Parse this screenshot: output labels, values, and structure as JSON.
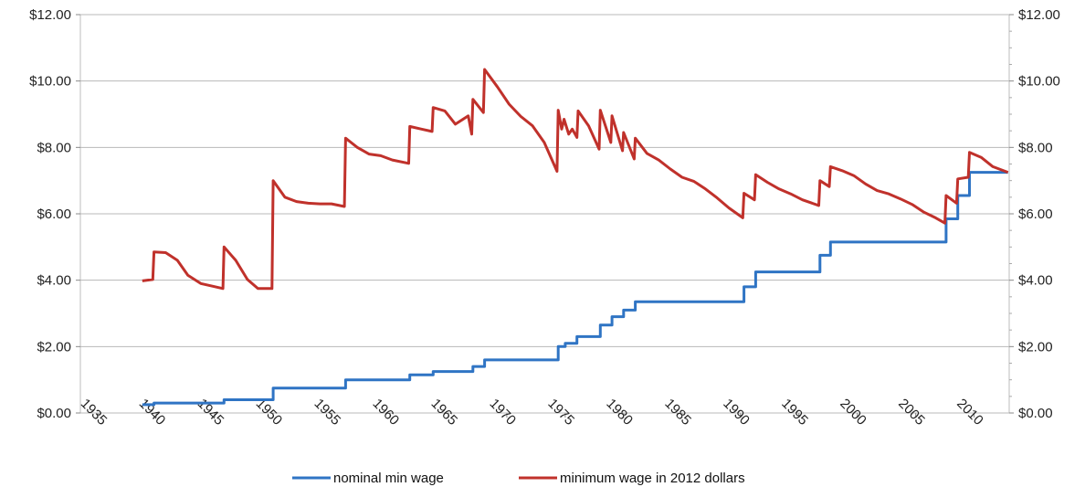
{
  "chart_data": {
    "type": "line",
    "title": "",
    "xlabel": "",
    "ylabel": "",
    "x_range": [
      1933.5,
      2013
    ],
    "ylim": [
      0,
      12
    ],
    "y_ticks": [
      "$0.00",
      "$2.00",
      "$4.00",
      "$6.00",
      "$8.00",
      "$10.00",
      "$12.00"
    ],
    "y_tick_values": [
      0,
      2,
      4,
      6,
      8,
      10,
      12
    ],
    "x_ticks": [
      "1935",
      "1940",
      "1945",
      "1950",
      "1955",
      "1960",
      "1965",
      "1970",
      "1975",
      "1980",
      "1985",
      "1990",
      "1995",
      "2000",
      "2005",
      "2010"
    ],
    "x_tick_values": [
      1935,
      1940,
      1945,
      1950,
      1955,
      1960,
      1965,
      1970,
      1975,
      1980,
      1985,
      1990,
      1995,
      2000,
      2005,
      2010
    ],
    "grid": "horizontal",
    "legend_position": "bottom",
    "series": [
      {
        "name": "nominal min wage",
        "color": "#2f74c4",
        "step": true,
        "points": [
          [
            1938.8,
            0.25
          ],
          [
            1939.8,
            0.3
          ],
          [
            1945.8,
            0.4
          ],
          [
            1950.0,
            0.75
          ],
          [
            1956.2,
            1.0
          ],
          [
            1961.7,
            1.15
          ],
          [
            1963.7,
            1.25
          ],
          [
            1967.1,
            1.4
          ],
          [
            1968.1,
            1.6
          ],
          [
            1974.4,
            2.0
          ],
          [
            1975.0,
            2.1
          ],
          [
            1976.0,
            2.3
          ],
          [
            1978.0,
            2.65
          ],
          [
            1979.0,
            2.9
          ],
          [
            1980.0,
            3.1
          ],
          [
            1981.0,
            3.35
          ],
          [
            1990.3,
            3.8
          ],
          [
            1991.3,
            4.25
          ],
          [
            1996.8,
            4.75
          ],
          [
            1997.7,
            5.15
          ],
          [
            2007.6,
            5.85
          ],
          [
            2008.6,
            6.55
          ],
          [
            2009.6,
            7.25
          ],
          [
            2012.9,
            7.25
          ]
        ]
      },
      {
        "name": "minimum wage in 2012 dollars",
        "color": "#c0312b",
        "step": false,
        "points": [
          [
            1938.8,
            3.98
          ],
          [
            1939.7,
            4.02
          ],
          [
            1939.8,
            4.85
          ],
          [
            1940.8,
            4.83
          ],
          [
            1941.8,
            4.6
          ],
          [
            1942.7,
            4.15
          ],
          [
            1943.8,
            3.9
          ],
          [
            1944.8,
            3.82
          ],
          [
            1945.7,
            3.75
          ],
          [
            1945.8,
            5.0
          ],
          [
            1946.8,
            4.6
          ],
          [
            1947.8,
            4.02
          ],
          [
            1948.7,
            3.75
          ],
          [
            1949.9,
            3.75
          ],
          [
            1950.0,
            7.0
          ],
          [
            1951.0,
            6.5
          ],
          [
            1952.0,
            6.37
          ],
          [
            1953.0,
            6.32
          ],
          [
            1954.0,
            6.3
          ],
          [
            1955.0,
            6.3
          ],
          [
            1956.1,
            6.22
          ],
          [
            1956.2,
            8.28
          ],
          [
            1957.2,
            8.0
          ],
          [
            1958.2,
            7.8
          ],
          [
            1959.2,
            7.75
          ],
          [
            1960.2,
            7.62
          ],
          [
            1961.6,
            7.52
          ],
          [
            1961.7,
            8.63
          ],
          [
            1962.7,
            8.55
          ],
          [
            1963.6,
            8.48
          ],
          [
            1963.7,
            9.2
          ],
          [
            1964.7,
            9.1
          ],
          [
            1965.6,
            8.7
          ],
          [
            1966.7,
            8.95
          ],
          [
            1967.0,
            8.4
          ],
          [
            1967.1,
            9.45
          ],
          [
            1968.0,
            9.05
          ],
          [
            1968.1,
            10.35
          ],
          [
            1969.2,
            9.82
          ],
          [
            1970.2,
            9.3
          ],
          [
            1971.2,
            8.93
          ],
          [
            1972.2,
            8.65
          ],
          [
            1973.2,
            8.15
          ],
          [
            1974.3,
            7.28
          ],
          [
            1974.4,
            9.12
          ],
          [
            1974.7,
            8.55
          ],
          [
            1974.9,
            8.85
          ],
          [
            1975.3,
            8.4
          ],
          [
            1975.6,
            8.55
          ],
          [
            1976.0,
            8.3
          ],
          [
            1976.1,
            9.1
          ],
          [
            1977.0,
            8.65
          ],
          [
            1977.9,
            7.95
          ],
          [
            1978.0,
            9.12
          ],
          [
            1978.9,
            8.15
          ],
          [
            1979.0,
            8.95
          ],
          [
            1979.9,
            7.9
          ],
          [
            1980.0,
            8.45
          ],
          [
            1980.9,
            7.65
          ],
          [
            1981.0,
            8.28
          ],
          [
            1982.0,
            7.82
          ],
          [
            1983.0,
            7.62
          ],
          [
            1984.0,
            7.35
          ],
          [
            1985.0,
            7.1
          ],
          [
            1986.0,
            6.98
          ],
          [
            1987.0,
            6.75
          ],
          [
            1988.0,
            6.48
          ],
          [
            1989.0,
            6.18
          ],
          [
            1990.2,
            5.88
          ],
          [
            1990.3,
            6.62
          ],
          [
            1991.2,
            6.42
          ],
          [
            1991.3,
            7.18
          ],
          [
            1992.3,
            6.95
          ],
          [
            1993.3,
            6.75
          ],
          [
            1994.3,
            6.6
          ],
          [
            1995.3,
            6.42
          ],
          [
            1996.7,
            6.25
          ],
          [
            1996.8,
            7.0
          ],
          [
            1997.6,
            6.82
          ],
          [
            1997.7,
            7.42
          ],
          [
            1998.7,
            7.3
          ],
          [
            1999.7,
            7.15
          ],
          [
            2000.7,
            6.9
          ],
          [
            2001.7,
            6.7
          ],
          [
            2002.7,
            6.6
          ],
          [
            2003.7,
            6.45
          ],
          [
            2004.7,
            6.28
          ],
          [
            2005.7,
            6.05
          ],
          [
            2006.7,
            5.88
          ],
          [
            2007.5,
            5.72
          ],
          [
            2007.6,
            6.55
          ],
          [
            2008.5,
            6.32
          ],
          [
            2008.6,
            7.05
          ],
          [
            2009.5,
            7.1
          ],
          [
            2009.6,
            7.85
          ],
          [
            2010.6,
            7.7
          ],
          [
            2011.6,
            7.42
          ],
          [
            2012.9,
            7.25
          ]
        ]
      }
    ]
  }
}
